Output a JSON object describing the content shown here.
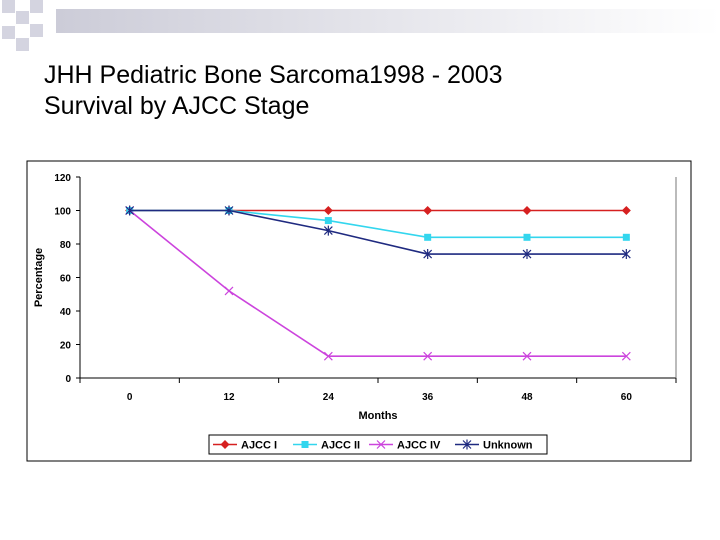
{
  "slide": {
    "title_line1": "JHH Pediatric Bone Sarcoma1998 - 2003",
    "title_line2": "Survival by AJCC Stage"
  },
  "chart_data": {
    "type": "line",
    "title": "",
    "xlabel": "Months",
    "ylabel": "Percentage",
    "categories": [
      "0",
      "12",
      "24",
      "36",
      "48",
      "60"
    ],
    "ylim": [
      0,
      120
    ],
    "yticks": [
      0,
      20,
      40,
      60,
      80,
      100,
      120
    ],
    "grid": false,
    "legend_position": "bottom",
    "series": [
      {
        "name": "AJCC I",
        "color": "#d62020",
        "marker": "diamond",
        "values": [
          100,
          100,
          100,
          100,
          100,
          100
        ]
      },
      {
        "name": "AJCC II",
        "color": "#33d6ee",
        "marker": "square",
        "values": [
          100,
          100,
          94,
          84,
          84,
          84
        ]
      },
      {
        "name": "AJCC IV",
        "color": "#cc44dd",
        "marker": "x",
        "values": [
          100,
          52,
          13,
          13,
          13,
          13
        ]
      },
      {
        "name": "Unknown",
        "color": "#1f2a80",
        "marker": "star",
        "values": [
          100,
          100,
          88,
          74,
          74,
          74
        ]
      }
    ]
  }
}
